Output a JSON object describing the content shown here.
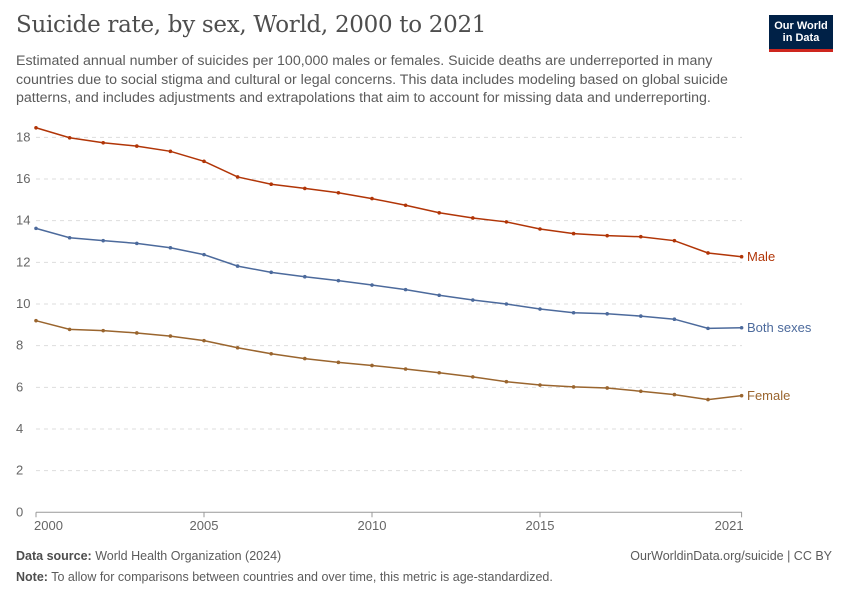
{
  "header": {
    "title": "Suicide rate, by sex, World, 2000 to 2021",
    "subtitle": "Estimated annual number of suicides per 100,000 males or females. Suicide deaths are underreported in many countries due to social stigma and cultural or legal concerns. This data includes modeling based on global suicide patterns, and includes adjustments and extrapolations that aim to account for missing data and underreporting.",
    "logo": "Our World in Data"
  },
  "footer": {
    "source_label": "Data source:",
    "source": "World Health Organization (2024)",
    "url": "OurWorldinData.org/suicide | CC BY",
    "note_label": "Note:",
    "note": "To allow for comparisons between countries and over time, this metric is age-standardized."
  },
  "chart_data": {
    "type": "line",
    "title": "Suicide rate, by sex, World, 2000 to 2021",
    "xlabel": "",
    "ylabel": "",
    "x": [
      2000,
      2001,
      2002,
      2003,
      2004,
      2005,
      2006,
      2007,
      2008,
      2009,
      2010,
      2011,
      2012,
      2013,
      2014,
      2015,
      2016,
      2017,
      2018,
      2019,
      2020,
      2021
    ],
    "xticks": [
      2000,
      2005,
      2010,
      2015,
      2021
    ],
    "yticks": [
      0,
      2,
      4,
      6,
      8,
      10,
      12,
      14,
      16,
      18
    ],
    "ylim": [
      0,
      18.5
    ],
    "xlim": [
      2000,
      2021
    ],
    "grid": "horizontal dashed",
    "legend": "inline right of line ends",
    "series": [
      {
        "name": "Male",
        "color": "#b13507",
        "values": [
          18.46,
          17.98,
          17.74,
          17.58,
          17.33,
          16.85,
          16.1,
          15.75,
          15.55,
          15.34,
          15.06,
          14.74,
          14.38,
          14.13,
          13.94,
          13.6,
          13.38,
          13.28,
          13.23,
          13.04,
          12.45,
          12.27
        ]
      },
      {
        "name": "Both sexes",
        "color": "#4c6a9c",
        "values": [
          13.63,
          13.18,
          13.04,
          12.91,
          12.7,
          12.37,
          11.82,
          11.52,
          11.31,
          11.12,
          10.91,
          10.69,
          10.42,
          10.19,
          10.0,
          9.76,
          9.58,
          9.53,
          9.42,
          9.27,
          8.83,
          8.86
        ]
      },
      {
        "name": "Female",
        "color": "#9a652e",
        "values": [
          9.2,
          8.78,
          8.72,
          8.61,
          8.46,
          8.24,
          7.9,
          7.61,
          7.38,
          7.2,
          7.05,
          6.88,
          6.7,
          6.5,
          6.27,
          6.11,
          6.02,
          5.97,
          5.81,
          5.65,
          5.41,
          5.6
        ]
      }
    ]
  }
}
